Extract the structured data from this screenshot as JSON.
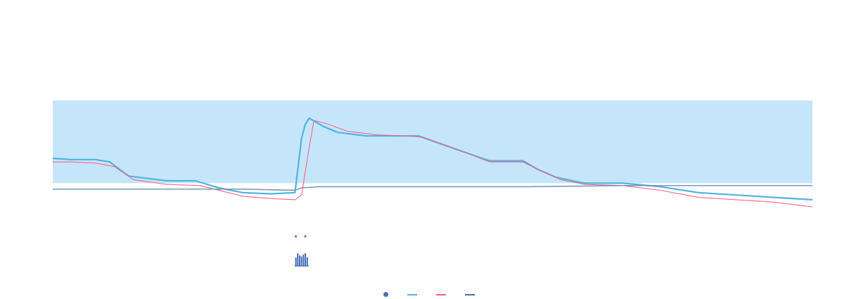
{
  "header": {
    "left": "",
    "right_a": "",
    "right_b": ""
  },
  "colors": {
    "band": "#bfe3f9",
    "glucose": "#4fb4e3",
    "sensor": "#ff5f87",
    "insulin_bar": "#4670b8",
    "basal": "#6b8fb7",
    "text": "#9aa4ad"
  },
  "legend": [
    {
      "label": "",
      "icon": "dot",
      "color": "#4670b8"
    },
    {
      "label": "",
      "icon": "line",
      "color": "#4fb4e3"
    },
    {
      "label": "",
      "icon": "line",
      "color": "#ff5f87"
    },
    {
      "label": "",
      "icon": "line",
      "color": "#4670b8"
    }
  ],
  "chart_data": {
    "type": "line",
    "title": "",
    "xlabel": "",
    "ylabel_left": "",
    "ylabel_right": "",
    "xlim": [
      0,
      8
    ],
    "ylim_left": [
      0,
      200
    ],
    "ylim_right": [
      0,
      10
    ],
    "x_ticks": [
      "",
      "",
      "",
      "",
      "",
      "",
      "",
      ""
    ],
    "y_ticks_left": [
      "",
      "",
      "",
      "",
      "",
      "",
      "",
      "",
      "",
      ""
    ],
    "y_ticks_right": [
      "",
      "",
      "",
      "",
      "",
      "",
      "",
      "",
      "",
      ""
    ],
    "target_band": [
      70,
      140
    ],
    "series": [
      {
        "name": "",
        "axis": "left",
        "color": "#4fb4e3",
        "x": [
          0,
          0.2,
          0.45,
          0.6,
          0.8,
          1.2,
          1.5,
          1.75,
          2.0,
          2.3,
          2.55,
          2.62,
          2.66,
          2.7,
          2.85,
          3.0,
          3.3,
          3.6,
          3.85,
          4.2,
          4.6,
          4.95,
          5.1,
          5.3,
          5.6,
          6.0,
          6.4,
          6.8,
          7.2,
          7.6,
          8.0
        ],
        "y": [
          91,
          90,
          90,
          88,
          76,
          72,
          72,
          66,
          62,
          61,
          62,
          108,
          120,
          125,
          118,
          113,
          110,
          110,
          110,
          100,
          89,
          89,
          82,
          75,
          70,
          70,
          67,
          62,
          60,
          58,
          56
        ]
      },
      {
        "name": "",
        "axis": "left",
        "color": "#ff5f87",
        "x": [
          0,
          0.2,
          0.45,
          0.65,
          0.85,
          1.2,
          1.55,
          1.8,
          2.0,
          2.3,
          2.55,
          2.62,
          2.7,
          2.75,
          2.9,
          3.1,
          3.4,
          3.7,
          3.9,
          4.25,
          4.6,
          4.95,
          5.15,
          5.35,
          5.6,
          6.0,
          6.4,
          6.8,
          7.2,
          7.6,
          8.0
        ],
        "y": [
          88,
          88,
          87,
          84,
          73,
          69,
          68,
          63,
          59,
          57,
          56,
          60,
          100,
          123,
          120,
          114,
          111,
          110,
          109,
          99,
          88,
          88,
          80,
          73,
          69,
          68,
          64,
          58,
          56,
          54,
          50
        ]
      },
      {
        "name": "",
        "axis": "left",
        "color": "#6b8fb7",
        "x": [
          0,
          1.0,
          2.0,
          2.55,
          2.62,
          2.8,
          3.2,
          4.0,
          5.0,
          6.0,
          7.0,
          8.0
        ],
        "y": [
          65,
          65,
          65,
          64,
          66,
          67,
          67,
          67,
          67,
          68,
          68,
          68
        ]
      }
    ],
    "insulin_doses": [
      {
        "x": 2.56,
        "value": 0.4
      },
      {
        "x": 2.58,
        "value": 0.6
      },
      {
        "x": 2.6,
        "value": 0.5
      },
      {
        "x": 2.62,
        "value": 0.45
      },
      {
        "x": 2.64,
        "value": 0.55
      },
      {
        "x": 2.66,
        "value": 0.6
      },
      {
        "x": 2.68,
        "value": 0.4
      }
    ],
    "grid": false
  }
}
